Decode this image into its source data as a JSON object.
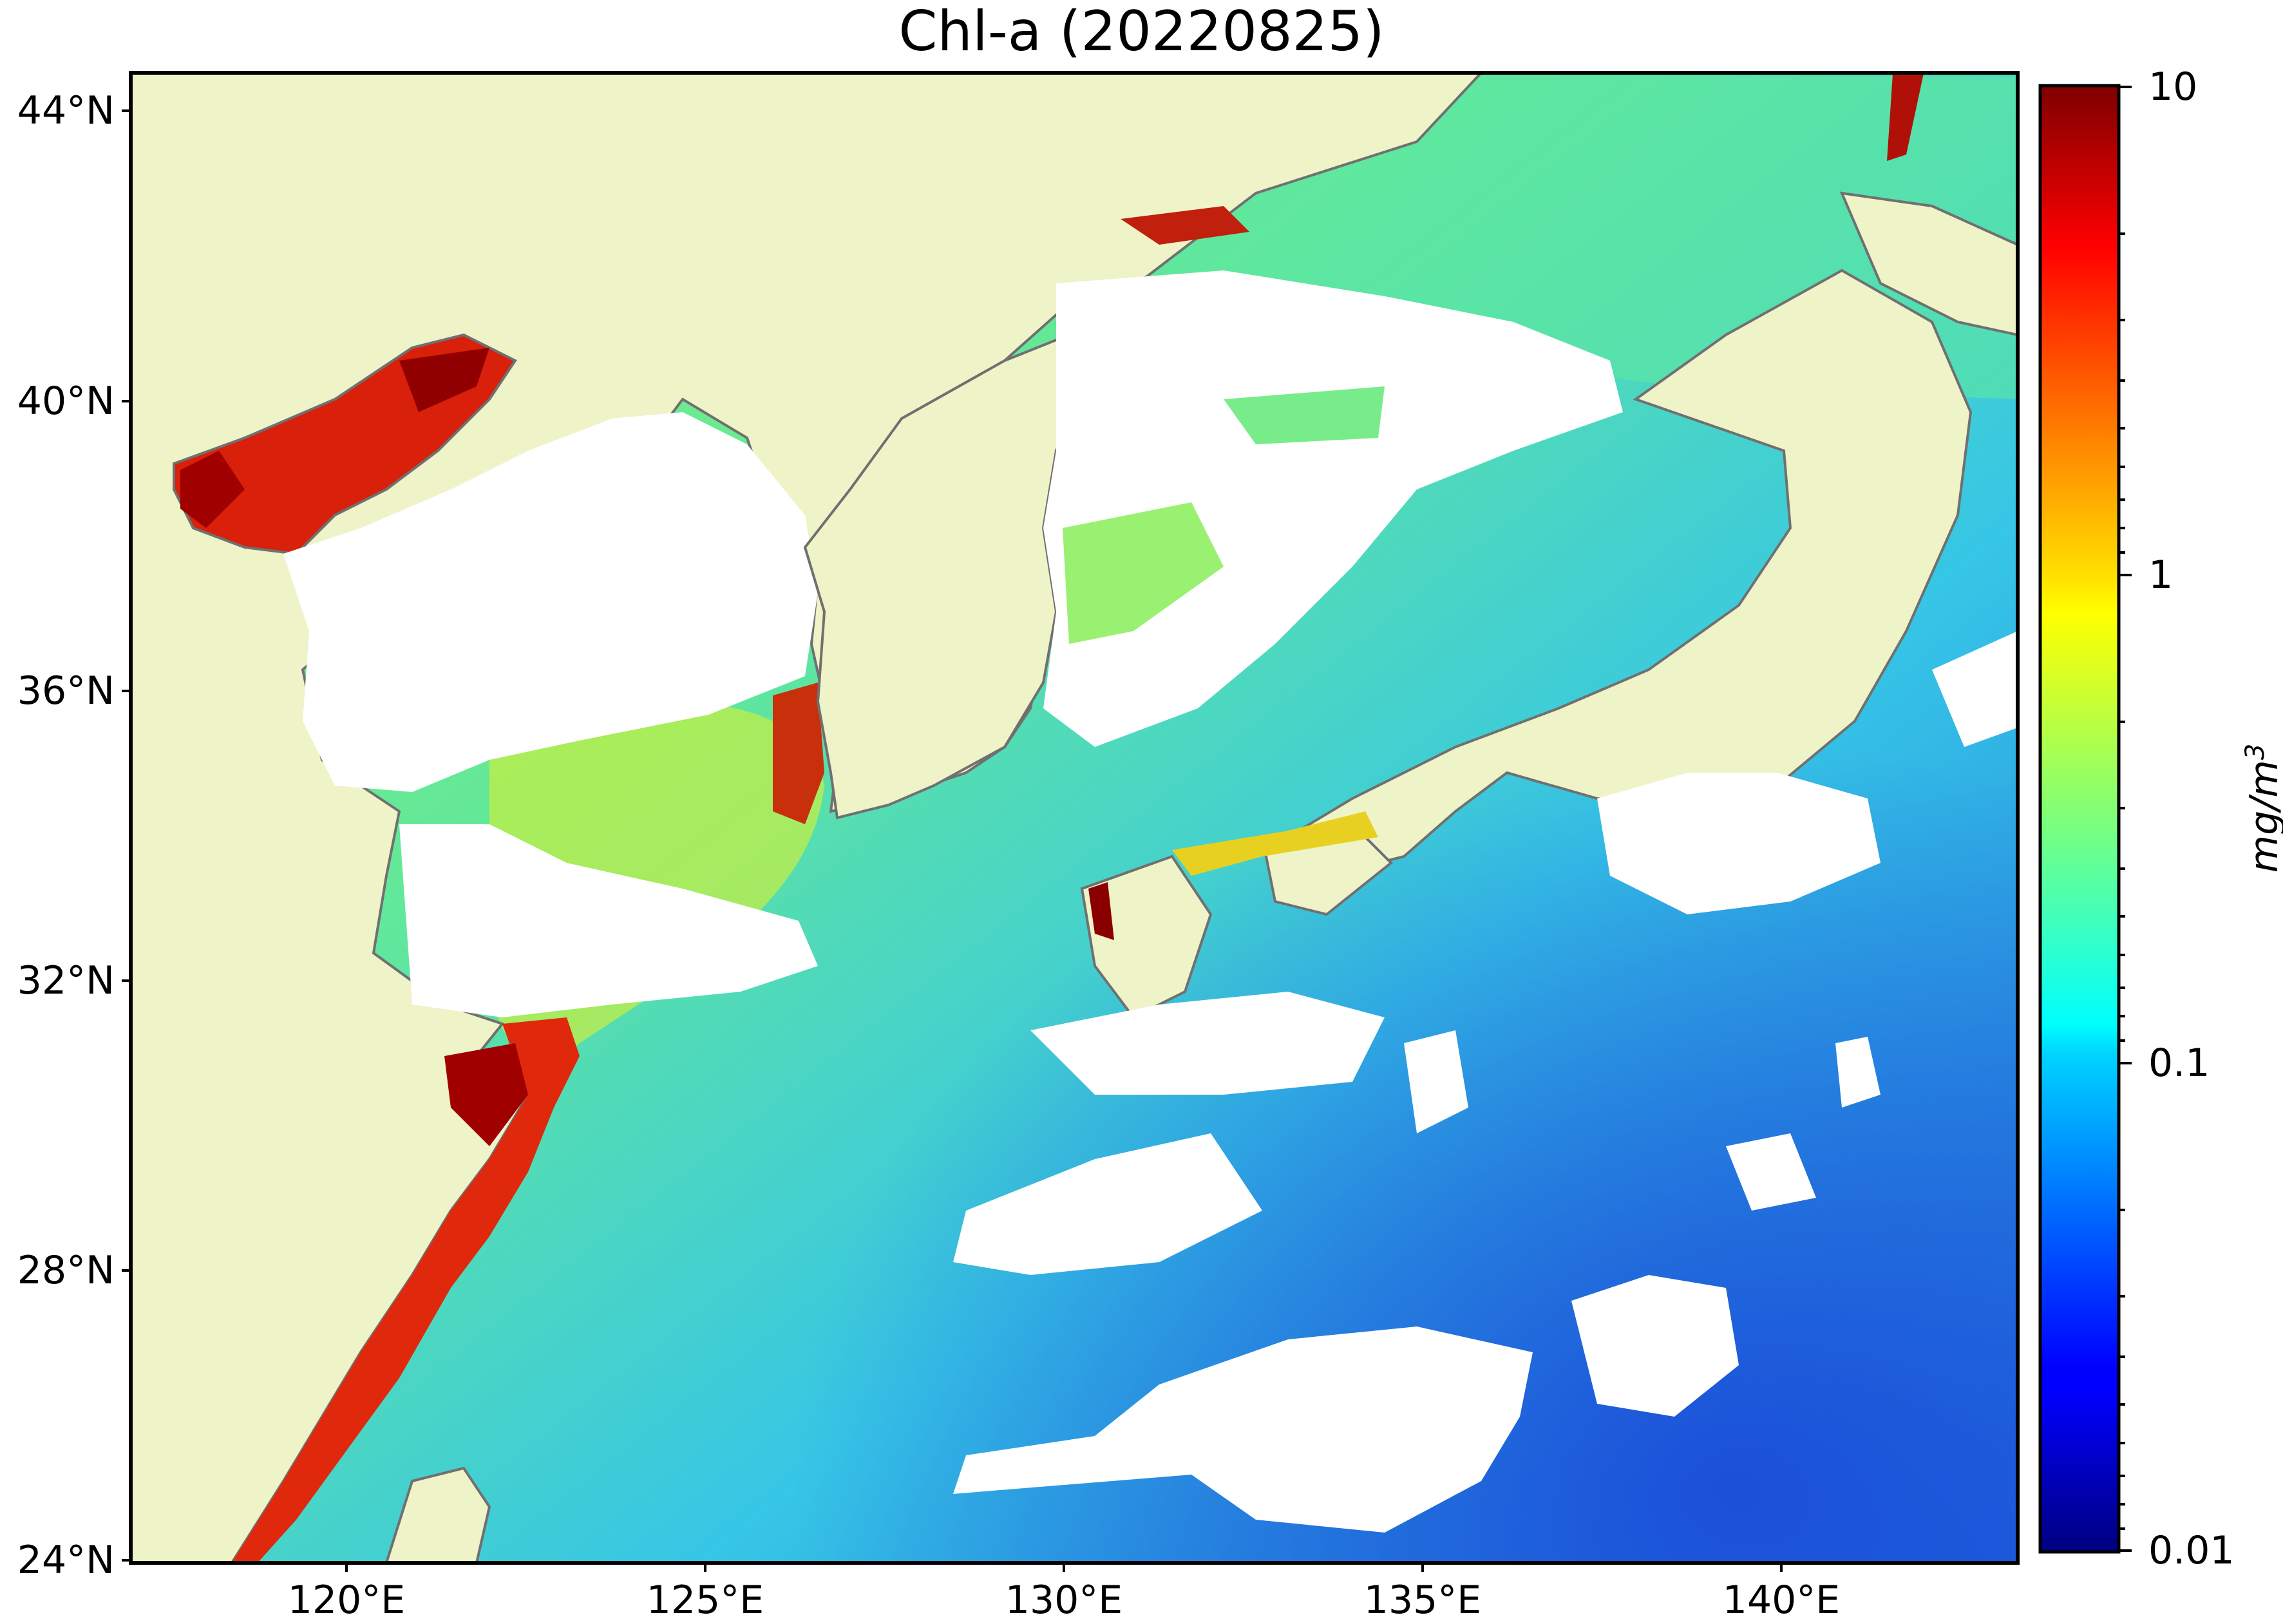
{
  "title": "Chl-a (20220825)",
  "map": {
    "region": "East China Sea, Yellow Sea, Sea of Japan and western North Pacific",
    "lat_range": [
      24,
      44.5
    ],
    "lon_range": [
      116.7,
      143.0
    ],
    "land_color": "#eff3c8",
    "no_data_color": "#ffffff",
    "coastline_color": "#707070",
    "lat_ticks": [
      "44°N",
      "40°N",
      "36°N",
      "32°N",
      "28°N",
      "24°N"
    ],
    "lon_ticks": [
      "120°E",
      "125°E",
      "130°E",
      "135°E",
      "140°E"
    ]
  },
  "colorbar": {
    "colormap": "jet",
    "scale": "log",
    "range": [
      0.01,
      10
    ],
    "tick_labels": [
      "10",
      "1",
      "0.1",
      "0.01"
    ],
    "unit_main": "mg/m",
    "unit_exp": "3"
  }
}
